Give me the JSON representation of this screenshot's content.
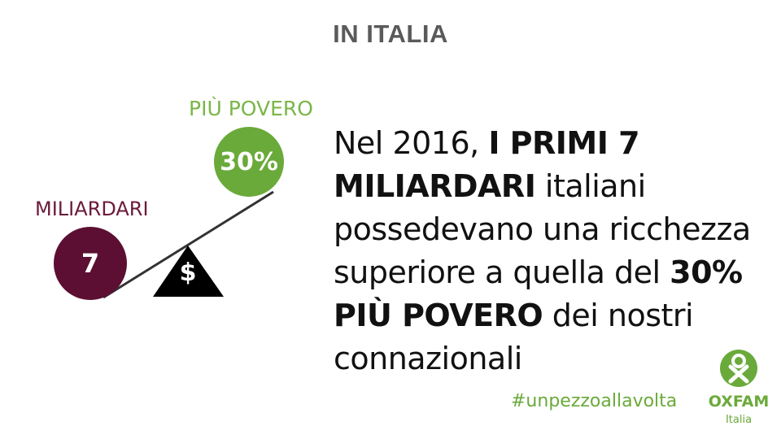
{
  "header": {
    "title": "IN ITALIA"
  },
  "scale": {
    "poor_label": "PIÙ POVERO",
    "poor_value": "30%",
    "rich_label": "MILIARDARI",
    "rich_value": "7",
    "fulcrum_symbol": "$",
    "colors": {
      "poor": "#6aaa3a",
      "rich": "#5c0f32"
    }
  },
  "statement": {
    "part1": "Nel 2016, ",
    "bold1": "I PRIMI 7 MILIARDARI",
    "part2": " italiani possedevano una ricchezza superiore a quella del ",
    "bold2": "30% PIÙ POVERO",
    "part3": " dei nostri connazionali"
  },
  "footer": {
    "hashtag": "#unpezzoallavolta",
    "logo_name": "OXFAM",
    "logo_sub": "Italia",
    "logo_icon": "oxfam-logo-icon"
  }
}
